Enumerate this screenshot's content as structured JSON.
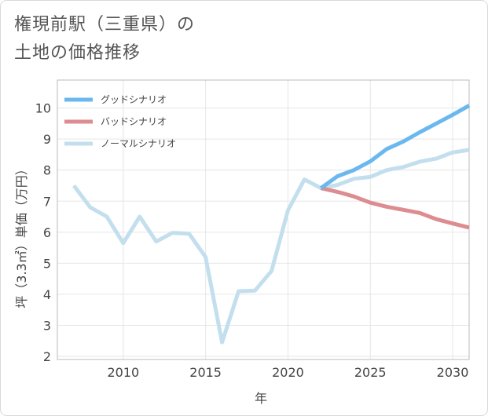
{
  "title_lines": [
    "権現前駅（三重県）の",
    "土地の価格推移"
  ],
  "chart_data": {
    "type": "line",
    "xlabel": "年",
    "ylabel": "坪（3.3㎡）単価（万円）",
    "xlim": [
      2006,
      2031
    ],
    "ylim": [
      1.9,
      10.9
    ],
    "xticks": [
      2010,
      2015,
      2020,
      2025,
      2030
    ],
    "yticks": [
      2,
      3,
      4,
      5,
      6,
      7,
      8,
      9,
      10
    ],
    "legend_position": "top-left",
    "series": [
      {
        "name": "グッドシナリオ",
        "color": "#6bb8ee",
        "x": [
          2022,
          2023,
          2024,
          2025,
          2026,
          2027,
          2028,
          2029,
          2030,
          2031
        ],
        "y": [
          7.42,
          7.8,
          8.0,
          8.28,
          8.68,
          8.92,
          9.22,
          9.5,
          9.78,
          10.08
        ]
      },
      {
        "name": "バッドシナリオ",
        "color": "#dd8c91",
        "x": [
          2022,
          2023,
          2024,
          2025,
          2026,
          2027,
          2028,
          2029,
          2030,
          2031
        ],
        "y": [
          7.42,
          7.3,
          7.15,
          6.95,
          6.82,
          6.72,
          6.62,
          6.42,
          6.28,
          6.15
        ]
      },
      {
        "name": "ノーマルシナリオ",
        "color": "#c3dfee",
        "x": [
          2007,
          2008,
          2009,
          2010,
          2011,
          2012,
          2013,
          2014,
          2015,
          2016,
          2017,
          2018,
          2019,
          2020,
          2021,
          2022,
          2023,
          2024,
          2025,
          2026,
          2027,
          2028,
          2029,
          2030,
          2031
        ],
        "y": [
          7.5,
          6.8,
          6.5,
          5.65,
          6.5,
          5.7,
          5.98,
          5.95,
          5.2,
          2.45,
          4.1,
          4.12,
          4.75,
          6.7,
          7.7,
          7.42,
          7.52,
          7.72,
          7.78,
          8.0,
          8.1,
          8.27,
          8.37,
          8.57,
          8.65
        ]
      }
    ]
  }
}
